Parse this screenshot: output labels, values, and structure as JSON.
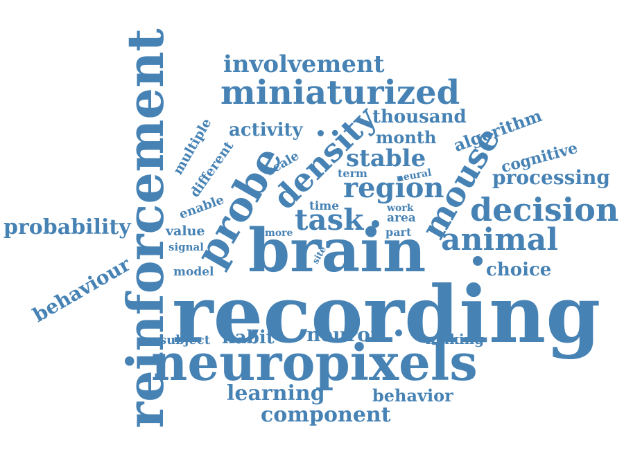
{
  "cloud": {
    "color": "#4682b4",
    "words": [
      "recording",
      "brain",
      "neuropixels",
      "reinforcement",
      "probe",
      "density",
      "mouse",
      "decision",
      "animal",
      "task",
      "region",
      "miniaturized",
      "involvement",
      "stable",
      "learning",
      "component",
      "probability",
      "behaviour",
      "processing",
      "activity",
      "thousand",
      "month",
      "algorithm",
      "cognitive",
      "choice",
      "neuron",
      "habit",
      "subject",
      "making",
      "behavior",
      "multiple",
      "different",
      "enable",
      "value",
      "signal",
      "model",
      "scale",
      "term",
      "neural",
      "time",
      "work",
      "area",
      "more",
      "part",
      "site"
    ]
  }
}
